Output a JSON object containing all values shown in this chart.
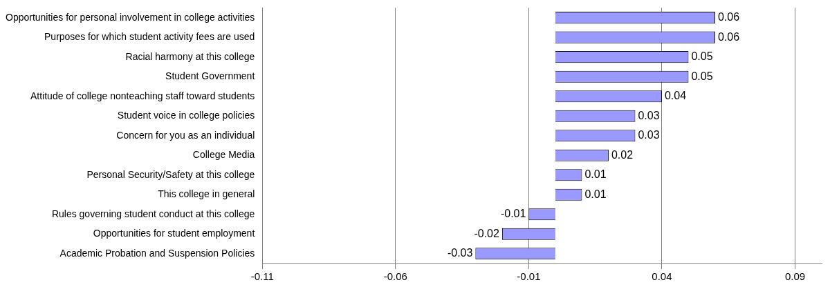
{
  "chart_data": {
    "type": "bar",
    "orientation": "horizontal",
    "categories": [
      "Opportunities for personal involvement in college activities",
      "Purposes for which student activity fees are used",
      "Racial harmony at this college",
      "Student Government",
      "Attitude of college nonteaching staff toward students",
      "Student voice in college policies",
      "Concern for you as an individual",
      "College Media",
      "Personal Security/Safety at this college",
      "This college in general",
      "Rules governing student conduct at this college",
      "Opportunities for student employment",
      "Academic Probation and Suspension Policies"
    ],
    "values": [
      0.06,
      0.06,
      0.05,
      0.05,
      0.04,
      0.03,
      0.03,
      0.02,
      0.01,
      0.01,
      -0.01,
      -0.02,
      -0.03
    ],
    "color": "#9999ff",
    "xlim": [
      -0.11,
      0.1
    ],
    "xticks": [
      -0.11,
      -0.06,
      -0.01,
      0.04,
      0.09
    ],
    "grid": "x",
    "legend": false,
    "data_labels": true
  }
}
